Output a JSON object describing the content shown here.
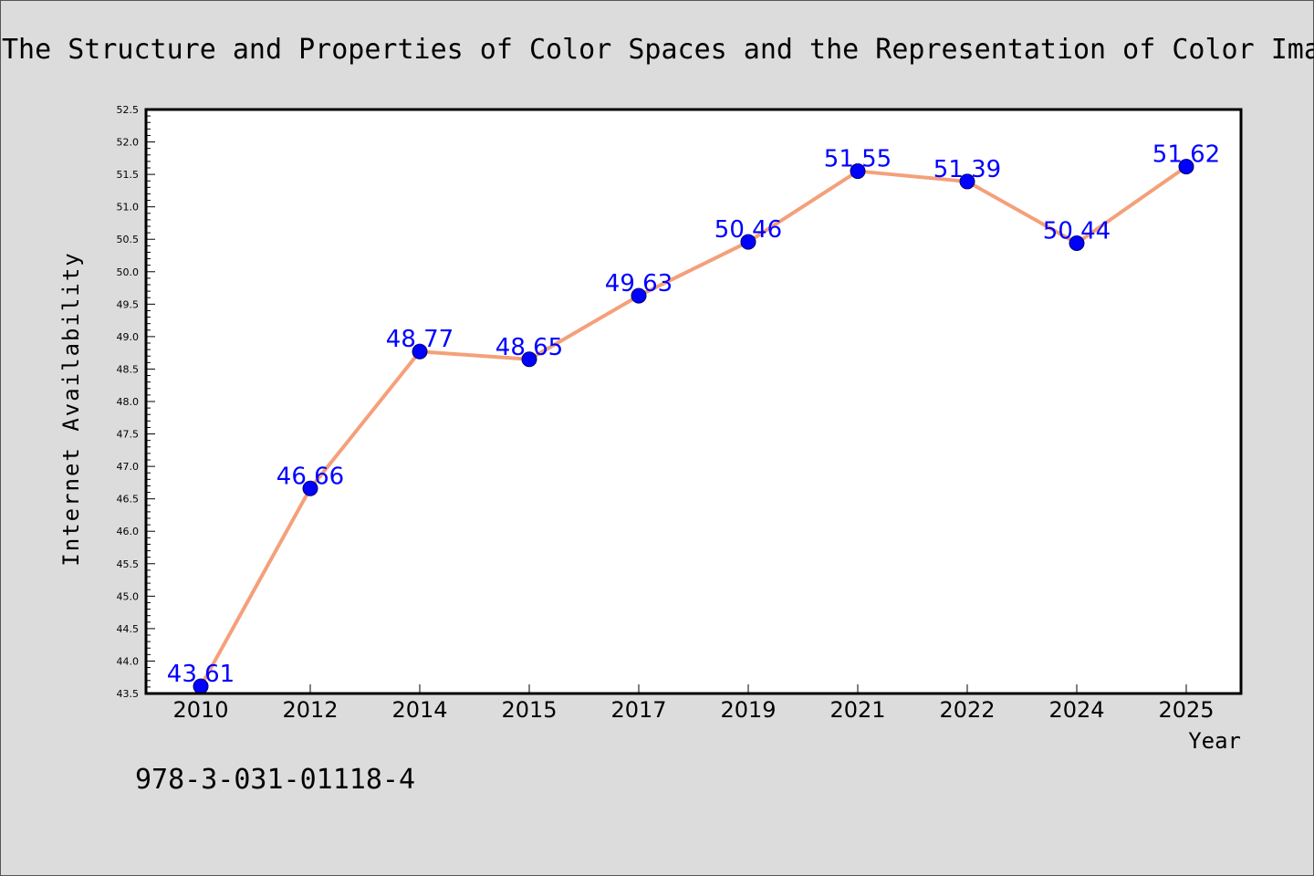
{
  "chart_data": {
    "type": "line",
    "title": "The Structure and Properties of Color Spaces and the Representation of Color Ima",
    "xlabel": "Year",
    "ylabel": "Internet Availability",
    "categories": [
      "2010",
      "2012",
      "2014",
      "2015",
      "2017",
      "2019",
      "2021",
      "2022",
      "2024",
      "2025"
    ],
    "series": [
      {
        "values": [
          43.61,
          46.66,
          48.77,
          48.65,
          49.63,
          50.46,
          51.55,
          51.39,
          50.44,
          51.62
        ],
        "line_color": "#f4a07a",
        "marker_color": "#0000ff"
      }
    ],
    "data_labels": [
      "43.61",
      "46.66",
      "48.77",
      "48.65",
      "49.63",
      "50.46",
      "51.55",
      "51.39",
      "50.44",
      "51.62"
    ],
    "label_color": "#0000ff",
    "ylim": [
      43.5,
      52.5
    ],
    "yticks": [
      "43.5",
      "44.0",
      "44.5",
      "45.0",
      "45.5",
      "46.0",
      "46.5",
      "47.0",
      "47.5",
      "48.0",
      "48.5",
      "49.0",
      "49.5",
      "50.0",
      "50.5",
      "51.0",
      "51.5",
      "52.0",
      "52.5"
    ],
    "grid": false,
    "legend": "none"
  },
  "footer": {
    "isbn": "978-3-031-01118-4"
  }
}
